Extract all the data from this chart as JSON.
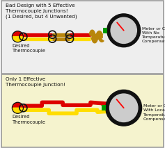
{
  "title_top": "Bad Design with 5 Effective\nThermocouple Junctions!\n(1 Desired, but 4 Unwanted)",
  "title_bottom": "Only 1 Effective\nThermocouple Junction!",
  "label_desired": "Desired\nThermocouple",
  "label_meter_top": "Meter or Chip\nWith No\nTemperature\nCompensation",
  "label_meter_bottom": "Meter or Chip\nWith Local\nTemperature\nCompensation",
  "bg_top": "#eeeeee",
  "bg_bottom": "#f5f3ce",
  "border_color": "#999999",
  "red_color": "#dd0000",
  "yellow_color": "#ffdd00",
  "brown_color": "#b8860b",
  "green_color": "#009900",
  "black_color": "#111111",
  "gray_color": "#cccccc",
  "white_color": "#ffffff"
}
